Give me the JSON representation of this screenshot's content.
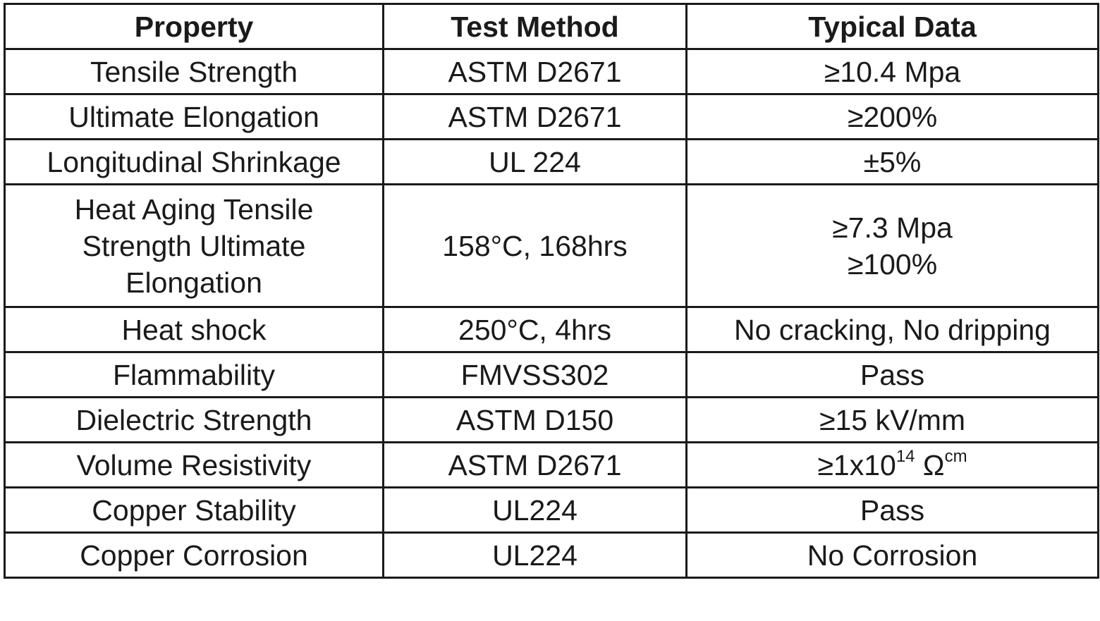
{
  "headers": {
    "property": "Property",
    "test_method": "Test Method",
    "typical_data": "Typical Data"
  },
  "rows": [
    {
      "property": "Tensile Strength",
      "method": "ASTM D2671",
      "data": "≥10.4 Mpa"
    },
    {
      "property": "Ultimate Elongation",
      "method": "ASTM D2671",
      "data": "≥200%"
    },
    {
      "property": "Longitudinal Shrinkage",
      "method": "UL 224",
      "data": "±5%"
    },
    {
      "property_lines": [
        "Heat Aging Tensile",
        "Strength Ultimate",
        "Elongation"
      ],
      "method": "158°C, 168hrs",
      "data_lines": [
        "≥7.3 Mpa",
        "≥100%"
      ]
    },
    {
      "property": "Heat shock",
      "method": "250°C, 4hrs",
      "data": "No cracking, No dripping"
    },
    {
      "property": "Flammability",
      "method": "FMVSS302",
      "data": "Pass"
    },
    {
      "property": "Dielectric Strength",
      "method": "ASTM D150",
      "data": "≥15 kV/mm"
    },
    {
      "property": "Volume Resistivity",
      "method": "ASTM D2671",
      "data_base": "≥1x10",
      "data_exp": "14",
      "data_unit": " Ω",
      "data_unit_sup": "cm"
    },
    {
      "property": "Copper Stability",
      "method": "UL224",
      "data": "Pass"
    },
    {
      "property": "Copper Corrosion",
      "method": "UL224",
      "data": "No Corrosion"
    }
  ]
}
